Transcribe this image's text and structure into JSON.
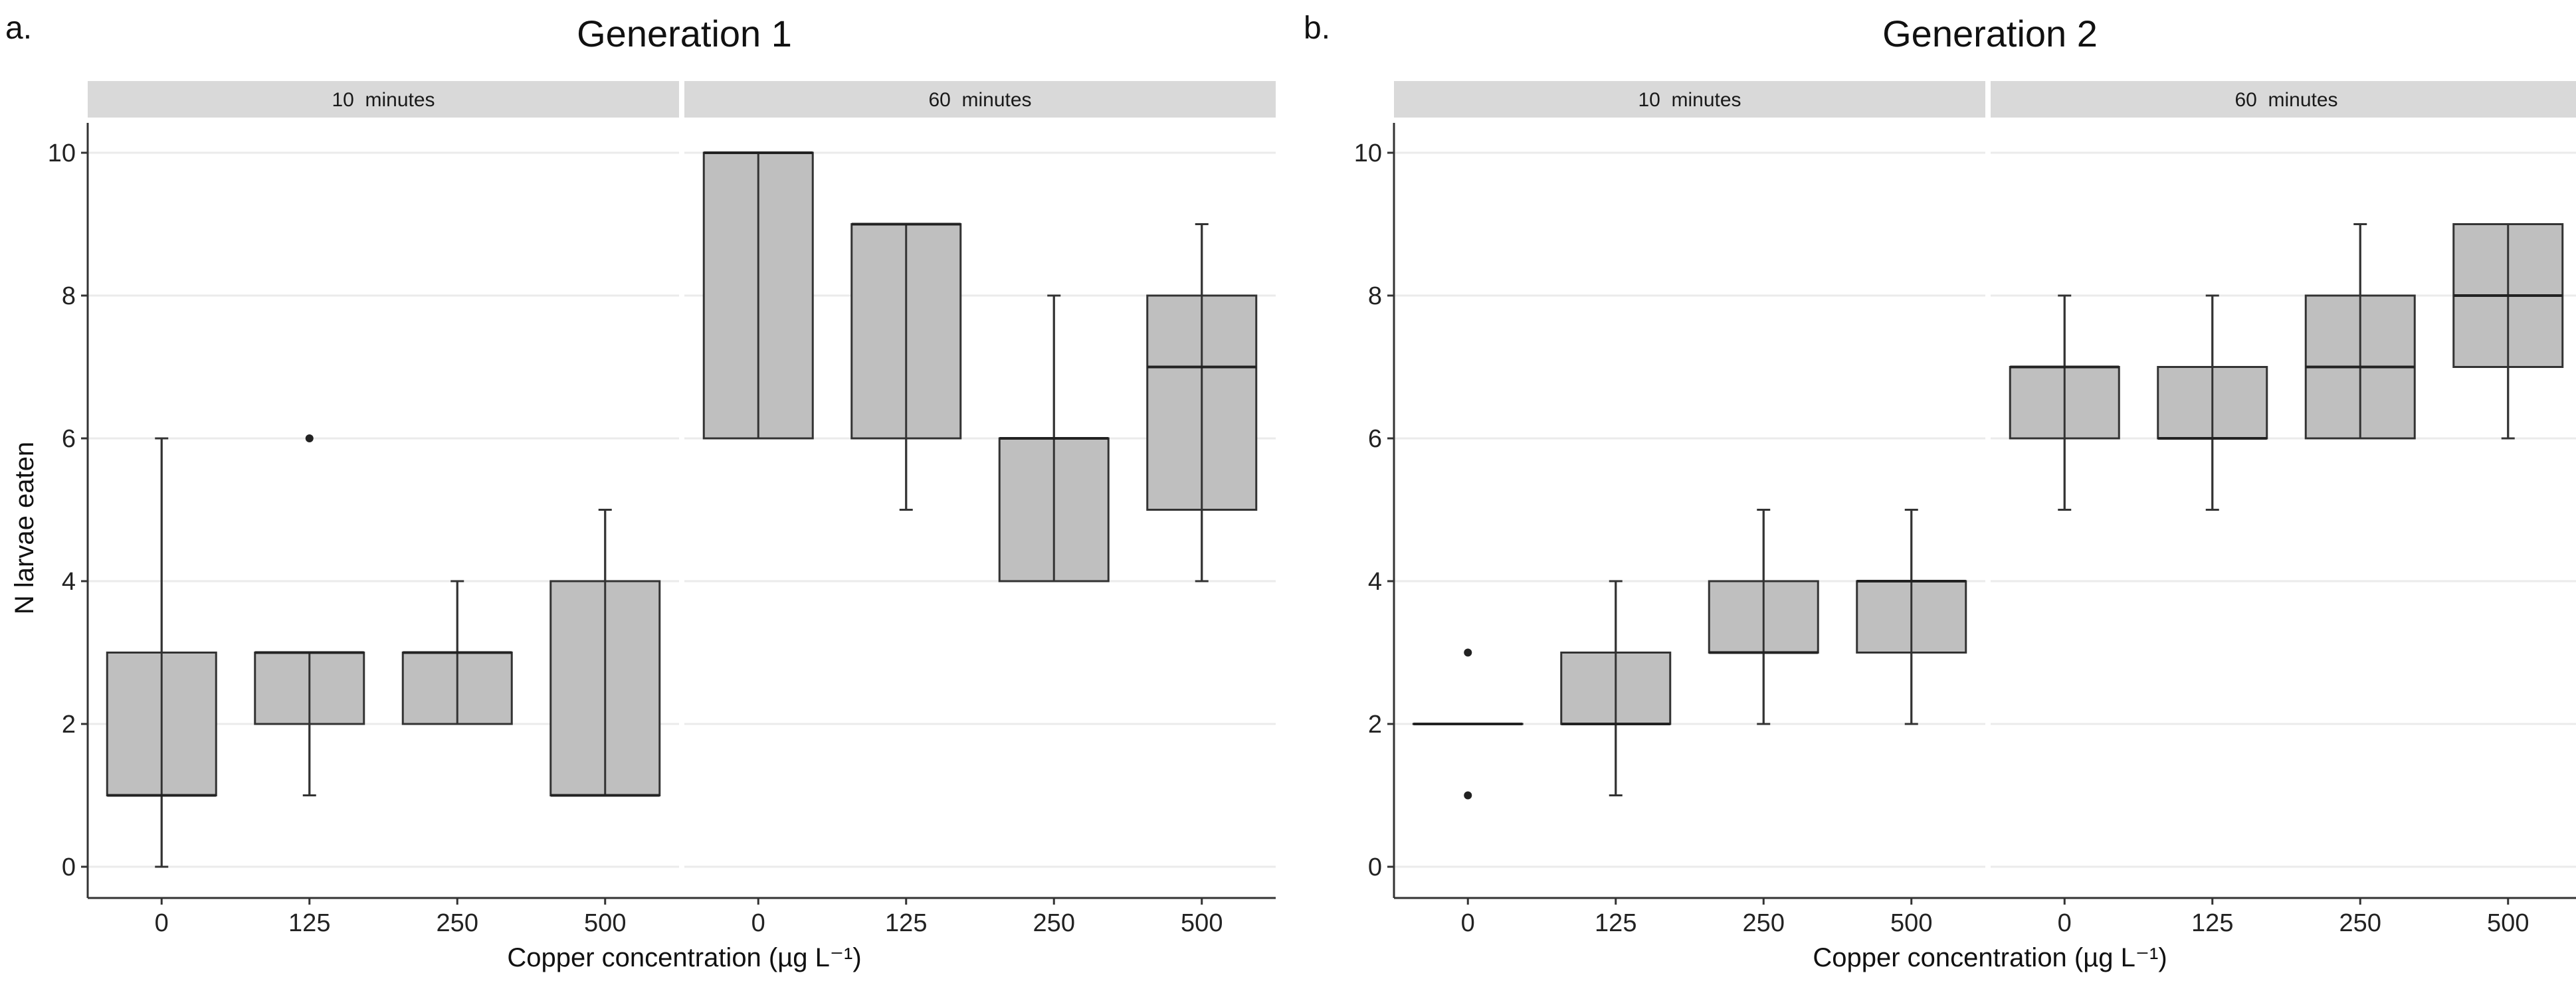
{
  "chart_data": [
    {
      "type": "boxplot",
      "panel_label": "a.",
      "title": "Generation 1",
      "ylabel": "N larvae eaten",
      "xlabel": "Copper concentration (µg L⁻¹)",
      "ylim": [
        0,
        10
      ],
      "yticks": [
        0,
        2,
        4,
        6,
        8,
        10
      ],
      "grid": true,
      "facets": [
        {
          "label": "10  minutes",
          "categories": [
            "0",
            "125",
            "250",
            "500"
          ],
          "boxes": [
            {
              "min": 0,
              "q1": 1,
              "median": 1,
              "q3": 3,
              "max": 6,
              "outliers": []
            },
            {
              "min": 1,
              "q1": 2,
              "median": 3,
              "q3": 3,
              "max": 3,
              "outliers": [
                6
              ]
            },
            {
              "min": 2,
              "q1": 2,
              "median": 3,
              "q3": 3,
              "max": 4,
              "outliers": []
            },
            {
              "min": 1,
              "q1": 1,
              "median": 1,
              "q3": 4,
              "max": 5,
              "outliers": []
            }
          ]
        },
        {
          "label": "60  minutes",
          "categories": [
            "0",
            "125",
            "250",
            "500"
          ],
          "boxes": [
            {
              "min": 6,
              "q1": 6,
              "median": 10,
              "q3": 10,
              "max": 10,
              "outliers": []
            },
            {
              "min": 5,
              "q1": 6,
              "median": 9,
              "q3": 9,
              "max": 9,
              "outliers": []
            },
            {
              "min": 4,
              "q1": 4,
              "median": 6,
              "q3": 6,
              "max": 8,
              "outliers": []
            },
            {
              "min": 4,
              "q1": 5,
              "median": 7,
              "q3": 8,
              "max": 9,
              "outliers": []
            }
          ]
        }
      ]
    },
    {
      "type": "boxplot",
      "panel_label": "b.",
      "title": "Generation 2",
      "ylabel": "",
      "xlabel": "Copper concentration (µg L⁻¹)",
      "ylim": [
        0,
        10
      ],
      "yticks": [
        0,
        2,
        4,
        6,
        8,
        10
      ],
      "grid": true,
      "facets": [
        {
          "label": "10  minutes",
          "categories": [
            "0",
            "125",
            "250",
            "500"
          ],
          "boxes": [
            {
              "min": 2,
              "q1": 2,
              "median": 2,
              "q3": 2,
              "max": 2,
              "outliers": [
                1,
                3
              ]
            },
            {
              "min": 1,
              "q1": 2,
              "median": 2,
              "q3": 3,
              "max": 4,
              "outliers": []
            },
            {
              "min": 2,
              "q1": 3,
              "median": 3,
              "q3": 4,
              "max": 5,
              "outliers": []
            },
            {
              "min": 2,
              "q1": 3,
              "median": 4,
              "q3": 4,
              "max": 5,
              "outliers": []
            }
          ]
        },
        {
          "label": "60  minutes",
          "categories": [
            "0",
            "125",
            "250",
            "500"
          ],
          "boxes": [
            {
              "min": 5,
              "q1": 6,
              "median": 7,
              "q3": 7,
              "max": 8,
              "outliers": []
            },
            {
              "min": 5,
              "q1": 6,
              "median": 6,
              "q3": 7,
              "max": 8,
              "outliers": []
            },
            {
              "min": 6,
              "q1": 6,
              "median": 7,
              "q3": 8,
              "max": 9,
              "outliers": []
            },
            {
              "min": 6,
              "q1": 7,
              "median": 8,
              "q3": 9,
              "max": 9,
              "outliers": []
            }
          ]
        }
      ]
    }
  ]
}
